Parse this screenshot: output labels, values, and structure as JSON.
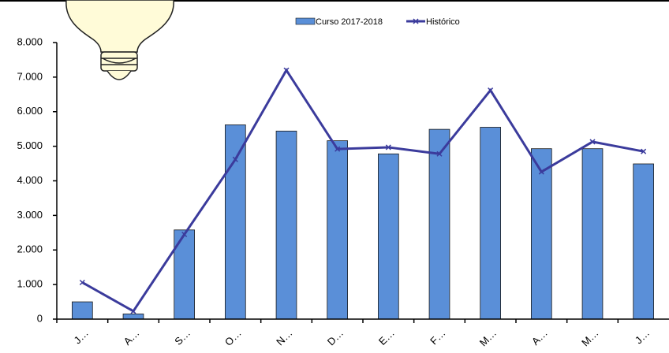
{
  "chart_data": {
    "type": "bar-line",
    "categories": [
      "J…",
      "A…",
      "S…",
      "O…",
      "N…",
      "D…",
      "E…",
      "F…",
      "M…",
      "A…",
      "M…",
      "J…"
    ],
    "series": [
      {
        "name": "Curso 2017-2018",
        "type": "bar",
        "color": "#5a8fd8",
        "values": [
          500,
          150,
          2580,
          5620,
          5440,
          5160,
          4780,
          5490,
          5550,
          4930,
          4930,
          4490
        ]
      },
      {
        "name": "Histórico",
        "type": "line",
        "color": "#3b3b9c",
        "values": [
          1060,
          230,
          2450,
          4620,
          7200,
          4920,
          4970,
          4780,
          6620,
          4260,
          5130,
          4850
        ]
      }
    ],
    "ylim": [
      0,
      8000
    ],
    "yticks": [
      0,
      {
        "value": 1000,
        "label": "1.000"
      },
      {
        "value": 2000,
        "label": "2.000"
      },
      {
        "value": 3000,
        "label": "3.000"
      },
      {
        "value": 4000,
        "label": "4.000"
      },
      {
        "value": 5000,
        "label": "5.000"
      },
      {
        "value": 6000,
        "label": "6.000"
      },
      {
        "value": 7000,
        "label": "7.000"
      },
      {
        "value": 8000,
        "label": "8.000"
      }
    ],
    "legend": "top"
  }
}
